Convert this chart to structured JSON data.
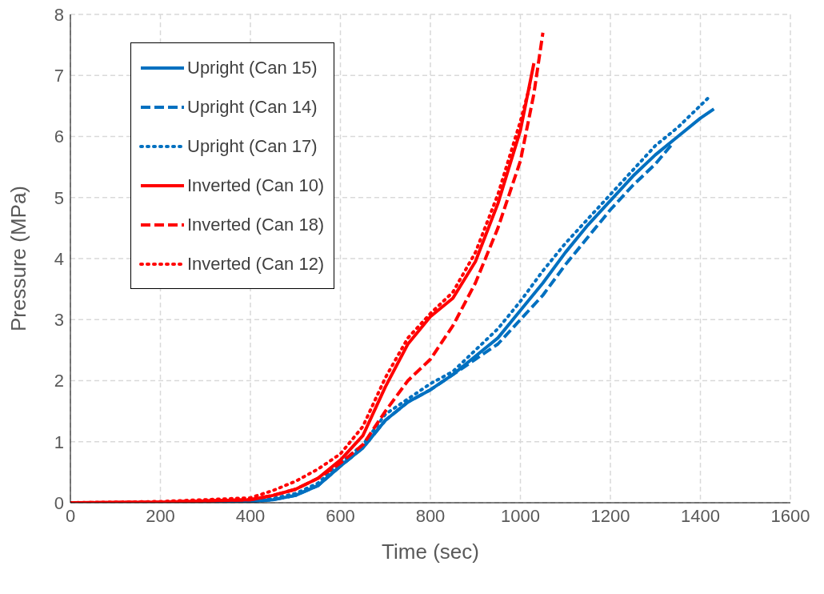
{
  "chart_data": {
    "type": "line",
    "xlabel": "Time (sec)",
    "ylabel": "Pressure (MPa)",
    "xlim": [
      0,
      1600
    ],
    "xticks": [
      0,
      200,
      400,
      600,
      800,
      1000,
      1200,
      1400,
      1600
    ],
    "ylim": [
      0,
      8
    ],
    "yticks": [
      0,
      1,
      2,
      3,
      4,
      5,
      6,
      7,
      8
    ],
    "grid": true,
    "legend": "top left",
    "marker": "none",
    "series": [
      {
        "name": "Upright (Can 15)",
        "color": "#0070c0",
        "line_style": "solid",
        "x": [
          0,
          200,
          400,
          450,
          500,
          550,
          600,
          650,
          700,
          750,
          800,
          850,
          900,
          950,
          1000,
          1050,
          1100,
          1150,
          1200,
          1250,
          1300,
          1350,
          1400,
          1430
        ],
        "values": [
          0,
          0,
          0.02,
          0.05,
          0.12,
          0.28,
          0.6,
          0.9,
          1.35,
          1.65,
          1.85,
          2.1,
          2.4,
          2.7,
          3.15,
          3.6,
          4.1,
          4.55,
          4.95,
          5.35,
          5.7,
          6.0,
          6.3,
          6.45
        ]
      },
      {
        "name": "Upright (Can 14)",
        "color": "#0070c0",
        "line_style": "dashed",
        "x": [
          0,
          200,
          400,
          450,
          500,
          550,
          600,
          650,
          700,
          750,
          800,
          850,
          900,
          950,
          1000,
          1050,
          1100,
          1150,
          1200,
          1250,
          1300,
          1340
        ],
        "values": [
          0,
          0,
          0.02,
          0.05,
          0.12,
          0.28,
          0.6,
          0.9,
          1.35,
          1.65,
          1.85,
          2.1,
          2.35,
          2.6,
          3.0,
          3.4,
          3.9,
          4.35,
          4.8,
          5.2,
          5.55,
          5.9
        ]
      },
      {
        "name": "Upright (Can 17)",
        "color": "#0070c0",
        "line_style": "dotted",
        "x": [
          0,
          200,
          400,
          450,
          500,
          550,
          600,
          650,
          700,
          750,
          800,
          850,
          900,
          950,
          1000,
          1050,
          1100,
          1150,
          1200,
          1250,
          1300,
          1350,
          1420
        ],
        "values": [
          0,
          0,
          0.03,
          0.07,
          0.15,
          0.32,
          0.65,
          0.95,
          1.45,
          1.7,
          1.95,
          2.15,
          2.5,
          2.85,
          3.3,
          3.8,
          4.25,
          4.65,
          5.05,
          5.45,
          5.85,
          6.15,
          6.65
        ]
      },
      {
        "name": "Inverted (Can 10)",
        "color": "#ff0000",
        "line_style": "solid",
        "x": [
          0,
          200,
          400,
          450,
          500,
          550,
          600,
          650,
          700,
          750,
          800,
          850,
          900,
          950,
          1000,
          1030
        ],
        "values": [
          0,
          0.01,
          0.05,
          0.12,
          0.22,
          0.4,
          0.7,
          1.1,
          1.9,
          2.6,
          3.05,
          3.35,
          3.95,
          4.9,
          6.1,
          7.2
        ]
      },
      {
        "name": "Inverted (Can 18)",
        "color": "#ff0000",
        "line_style": "dashed",
        "x": [
          0,
          200,
          400,
          450,
          500,
          550,
          600,
          650,
          700,
          750,
          800,
          850,
          900,
          950,
          1000,
          1030,
          1050
        ],
        "values": [
          0,
          0.01,
          0.05,
          0.12,
          0.22,
          0.4,
          0.65,
          0.95,
          1.5,
          2.0,
          2.35,
          2.9,
          3.6,
          4.5,
          5.6,
          6.7,
          7.7
        ]
      },
      {
        "name": "Inverted (Can 12)",
        "color": "#ff0000",
        "line_style": "dotted",
        "x": [
          0,
          200,
          400,
          450,
          500,
          550,
          600,
          650,
          700,
          750,
          800,
          850,
          900,
          950,
          1000,
          1020
        ],
        "values": [
          0,
          0.02,
          0.08,
          0.2,
          0.35,
          0.55,
          0.8,
          1.25,
          2.05,
          2.7,
          3.1,
          3.45,
          4.1,
          5.05,
          6.25,
          6.8
        ]
      }
    ]
  }
}
